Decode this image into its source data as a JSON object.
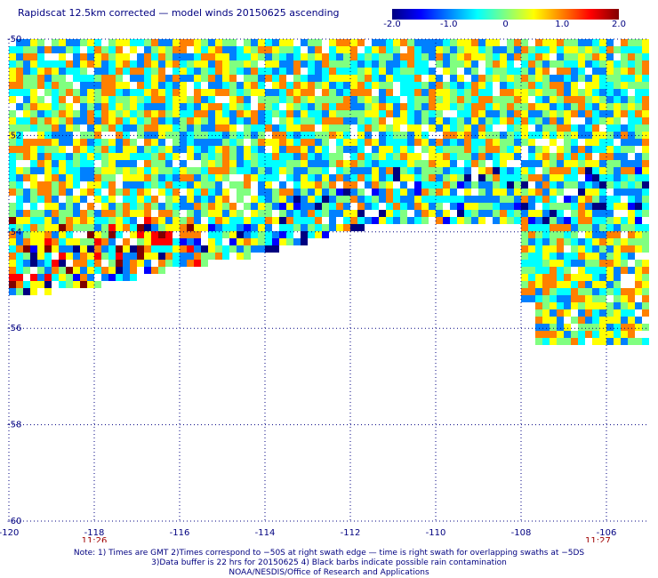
{
  "title": "Rapidscat 12.5km corrected — model winds 20150625 ascending",
  "colorbar": {
    "labels": [
      "-2.0",
      "-1.0",
      "0",
      "1.0",
      "2.0"
    ],
    "min": -2.0,
    "max": 2.0,
    "colors": [
      "#000080",
      "#0000ff",
      "#0080ff",
      "#00ffff",
      "#80ff80",
      "#ffff00",
      "#ff8000",
      "#ff0000",
      "#800000"
    ]
  },
  "map": {
    "lon_range": [
      -120,
      -105
    ],
    "lat_range": [
      -60,
      -50
    ],
    "lon_ticks": [
      -120,
      -118,
      -116,
      -114,
      -112,
      -110,
      -108,
      -106
    ],
    "lon_tick_labels": [
      "-120",
      "-118",
      "-116",
      "-114",
      "-112",
      "-110",
      "-108",
      "-106"
    ],
    "lat_ticks": [
      -50,
      -52,
      -54,
      -56,
      -58,
      -60
    ],
    "lat_tick_labels": [
      "-50",
      "-52",
      "-54",
      "-56",
      "-58",
      "-60"
    ],
    "times": [
      {
        "label": "11:26",
        "lon": -118
      },
      {
        "label": "11:27",
        "lon": -106.2
      }
    ],
    "grid_color": "#000080"
  },
  "notes": {
    "line1": "Note: 1) Times are GMT 2)Times correspond to −50S at right swath edge — time is right swath for overlapping swaths at −5DS",
    "line2": "3)Data buffer is 22 hrs for 20150625 4) Black barbs indicate possible rain contamination",
    "line3": "NOAA/NESDIS/Office of Research and Applications"
  }
}
